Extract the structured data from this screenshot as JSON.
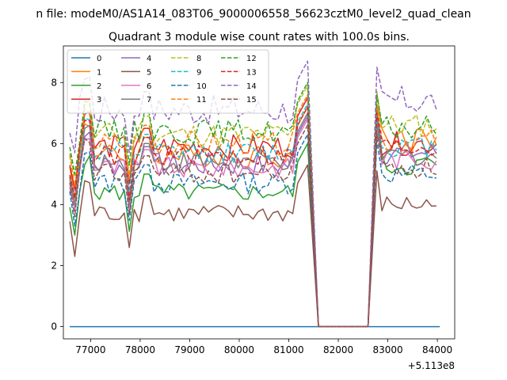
{
  "chart_data": {
    "type": "line",
    "suptitle": "n file: modeM0/AS1A14_083T06_9000006558_56623cztM0_level2_quad_clean",
    "title": "Quadrant 3 module wise count rates with 100.0s bins.",
    "xlabel": "",
    "ylabel": "",
    "offset_label": "+5.113e8",
    "xlim": [
      76450,
      84350
    ],
    "ylim": [
      -0.4,
      9.2
    ],
    "xticks": [
      77000,
      78000,
      79000,
      80000,
      81000,
      82000,
      83000,
      84000
    ],
    "xtick_labels": [
      "77000",
      "78000",
      "79000",
      "80000",
      "81000",
      "82000",
      "83000",
      "84000"
    ],
    "yticks": [
      0,
      2,
      4,
      6,
      8
    ],
    "ytick_labels": [
      "0",
      "2",
      "4",
      "6",
      "8"
    ],
    "grid": false,
    "legend_location": "upper left",
    "legend_columns": 4,
    "segments": {
      "seg1": {
        "start": 76580,
        "end": 81400
      },
      "gap": {
        "start": 81600,
        "end": 82600
      },
      "seg2": {
        "start": 82780,
        "end": 84050
      }
    },
    "series": [
      {
        "name": "0",
        "color": "#1f77b4",
        "dash": false,
        "level": 0.0,
        "level2": 0.0,
        "amp": 0.0,
        "amp2": 0.0
      },
      {
        "name": "1",
        "color": "#ff7f0e",
        "dash": false,
        "level": 5.6,
        "level2": 6.2,
        "amp": 0.4,
        "amp2": 0.4
      },
      {
        "name": "2",
        "color": "#2ca02c",
        "dash": false,
        "level": 4.4,
        "level2": 5.3,
        "amp": 0.3,
        "amp2": 0.4
      },
      {
        "name": "3",
        "color": "#d62728",
        "dash": false,
        "level": 5.9,
        "level2": 6.0,
        "amp": 0.4,
        "amp2": 0.4
      },
      {
        "name": "4",
        "color": "#9467bd",
        "dash": false,
        "level": 5.3,
        "level2": 5.7,
        "amp": 0.4,
        "amp2": 0.4
      },
      {
        "name": "5",
        "color": "#8c564b",
        "dash": false,
        "level": 3.7,
        "level2": 4.0,
        "amp": 0.3,
        "amp2": 0.3
      },
      {
        "name": "6",
        "color": "#e377c2",
        "dash": false,
        "level": 5.2,
        "level2": 5.5,
        "amp": 0.35,
        "amp2": 0.35
      },
      {
        "name": "7",
        "color": "#7f7f7f",
        "dash": false,
        "level": 5.4,
        "level2": 5.6,
        "amp": 0.35,
        "amp2": 0.35
      },
      {
        "name": "8",
        "color": "#bcbd22",
        "dash": true,
        "level": 6.3,
        "level2": 6.6,
        "amp": 0.4,
        "amp2": 0.4
      },
      {
        "name": "9",
        "color": "#17becf",
        "dash": true,
        "level": 5.7,
        "level2": 5.9,
        "amp": 0.35,
        "amp2": 0.35
      },
      {
        "name": "10",
        "color": "#1f77b4",
        "dash": true,
        "level": 4.7,
        "level2": 5.0,
        "amp": 0.35,
        "amp2": 0.35
      },
      {
        "name": "11",
        "color": "#ff7f0e",
        "dash": true,
        "level": 6.0,
        "level2": 6.1,
        "amp": 0.4,
        "amp2": 0.4
      },
      {
        "name": "12",
        "color": "#2ca02c",
        "dash": true,
        "level": 6.4,
        "level2": 6.5,
        "amp": 0.4,
        "amp2": 0.4
      },
      {
        "name": "13",
        "color": "#d62728",
        "dash": true,
        "level": 5.6,
        "level2": 5.9,
        "amp": 0.35,
        "amp2": 0.35
      },
      {
        "name": "14",
        "color": "#9467bd",
        "dash": true,
        "level": 7.1,
        "level2": 7.4,
        "amp": 0.5,
        "amp2": 0.5
      },
      {
        "name": "15",
        "color": "#8c564b",
        "dash": true,
        "level": 5.0,
        "level2": 5.2,
        "amp": 0.35,
        "amp2": 0.35
      }
    ]
  }
}
